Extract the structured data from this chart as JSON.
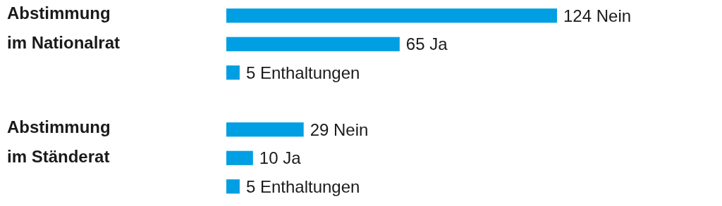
{
  "chart_data": [
    {
      "type": "bar",
      "orientation": "horizontal",
      "ylabel": "Abstimmung\nim Nationalrat",
      "categories": [
        null,
        null,
        null
      ],
      "values": [
        124,
        65,
        5
      ],
      "value_labels": [
        "124 Nein",
        "65 Ja",
        "5 Enthaltungen"
      ],
      "color": "#009fe3"
    },
    {
      "type": "bar",
      "orientation": "horizontal",
      "ylabel": "Abstimmung\nim Ständerat",
      "categories": [
        null,
        null,
        null
      ],
      "values": [
        29,
        10,
        5
      ],
      "value_labels": [
        "29 Nein",
        "10 Ja",
        "5 Enthaltungen"
      ],
      "color": "#009fe3"
    }
  ]
}
